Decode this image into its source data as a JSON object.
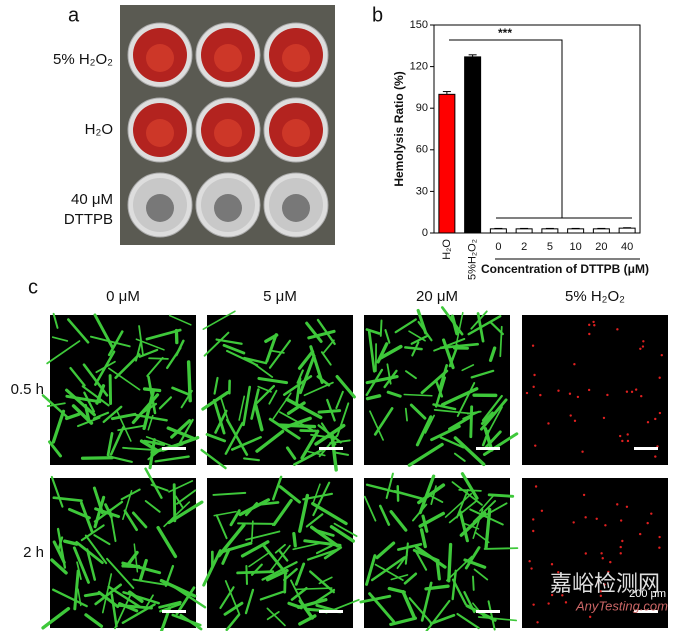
{
  "chart_data": {
    "type": "bar",
    "title": "b",
    "categories": [
      "H₂O",
      "5%H₂O₂",
      "0",
      "2",
      "5",
      "10",
      "20",
      "40"
    ],
    "values": [
      100,
      127,
      3,
      3,
      3,
      3,
      3,
      3.5
    ],
    "errors": [
      2,
      1.5,
      0.3,
      0.3,
      0.3,
      0.3,
      0.3,
      0.3
    ],
    "colors": [
      "#ff0000",
      "#000000",
      "#ffffff",
      "#ffffff",
      "#ffffff",
      "#ffffff",
      "#ffffff",
      "#ffffff"
    ],
    "ylabel": "Hemolysis Ratio (%)",
    "xlabel": "Concentration of DTTPB (μM)",
    "annotation": "***",
    "ylim": [
      0,
      150
    ],
    "yticks": [
      0,
      30,
      60,
      90,
      120,
      150
    ]
  },
  "panel_a": {
    "label": "a",
    "rows": [
      [
        "5% H₂O₂"
      ],
      [
        "H₂O"
      ],
      [
        "40 μM",
        "DTTPB"
      ]
    ]
  },
  "panel_c": {
    "label": "c",
    "columns": [
      "0 μM",
      "5 μM",
      "20 μM",
      "5% H₂O₂"
    ],
    "rows": [
      "0.5 h",
      "2 h"
    ],
    "scale_bar": "200 μm"
  },
  "watermark": [
    "嘉峪检测网",
    "AnyTesting.com"
  ]
}
